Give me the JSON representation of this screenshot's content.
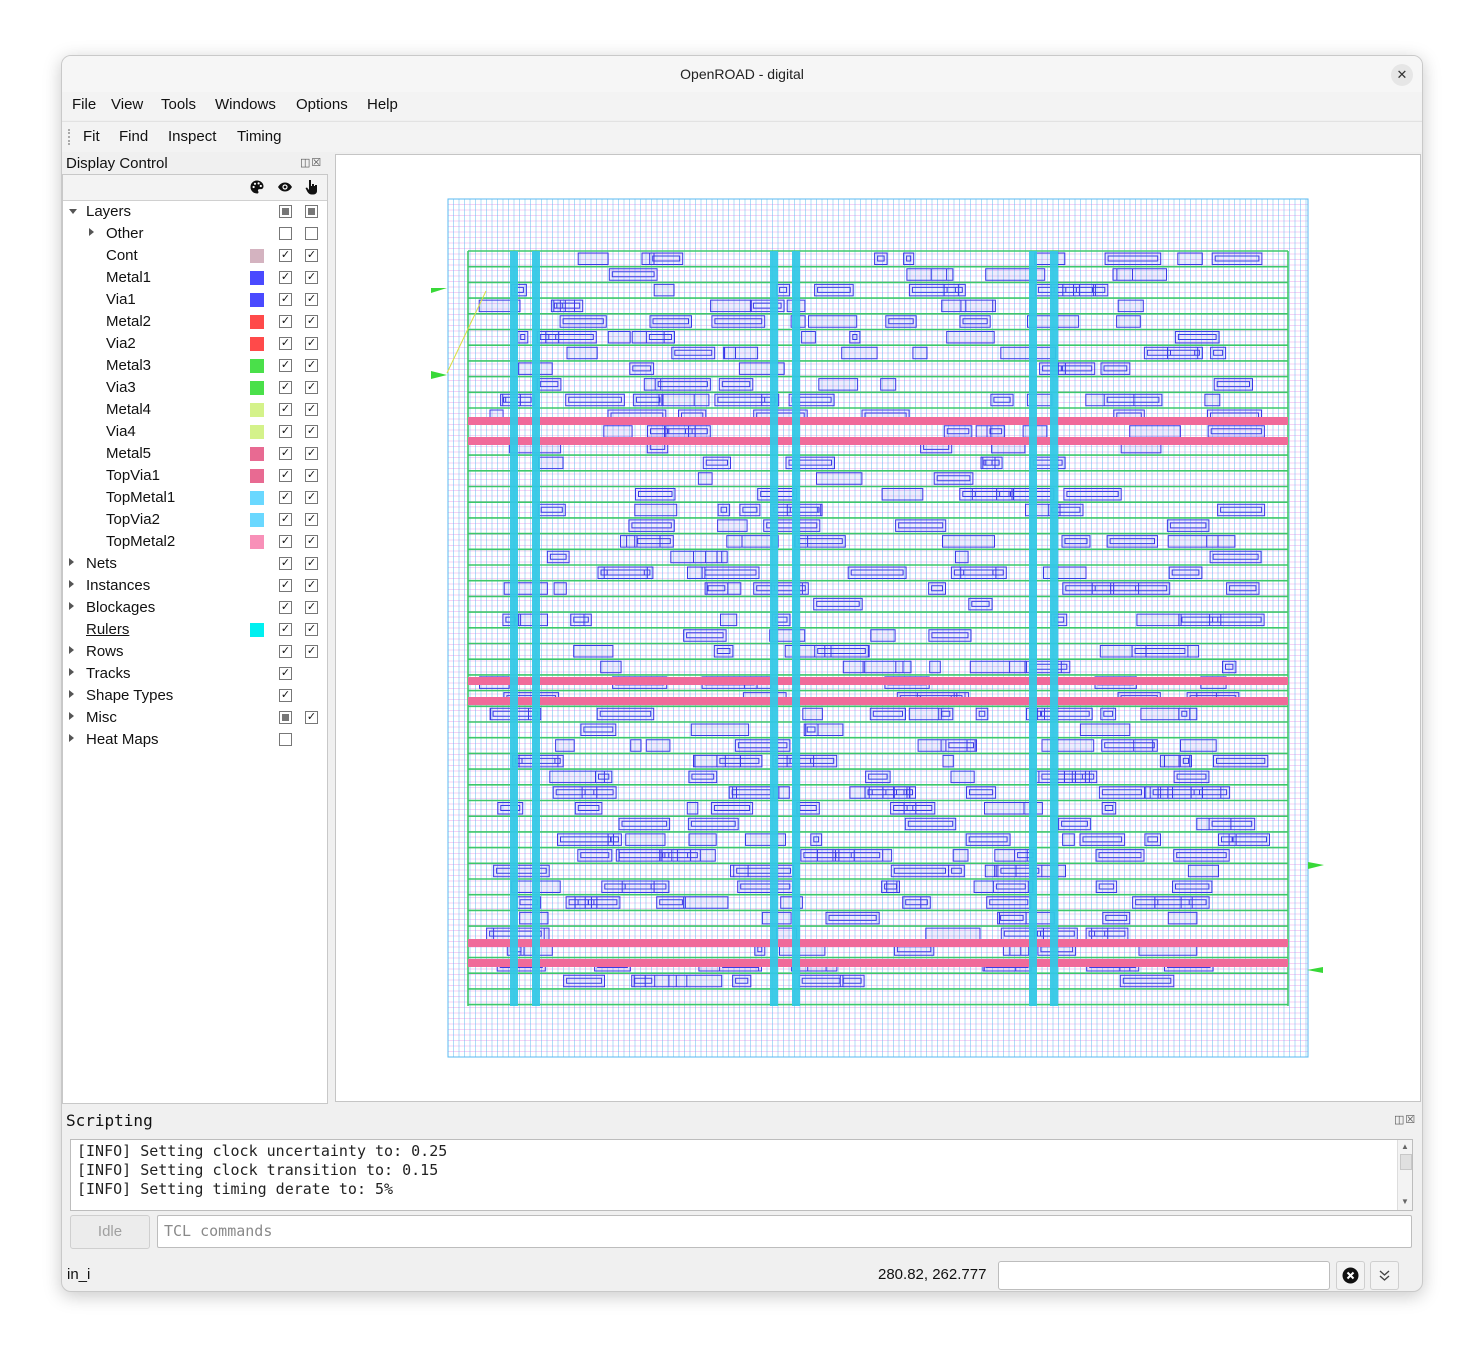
{
  "window": {
    "title": "OpenROAD - digital",
    "close_glyph": "✕"
  },
  "menubar": {
    "items": [
      "File",
      "View",
      "Tools",
      "Windows",
      "Options",
      "Help"
    ]
  },
  "toolbar": {
    "items": [
      "Fit",
      "Find",
      "Inspect",
      "Timing"
    ]
  },
  "display_control": {
    "title": "Display Control",
    "dock_buttons": "◫☒",
    "columns": {
      "color_icon": "palette-icon",
      "visible_icon": "eye-icon",
      "selectable_icon": "pointer-icon"
    },
    "rows": [
      {
        "label": "Layers",
        "indent": 0,
        "expander": "down",
        "color": null,
        "visible": "partial",
        "selectable": "partial"
      },
      {
        "label": "Other",
        "indent": 1,
        "expander": "right",
        "color": null,
        "visible": "unchecked",
        "selectable": "unchecked"
      },
      {
        "label": "Cont",
        "indent": 1,
        "expander": null,
        "color": "#d4b3c0",
        "visible": "checked",
        "selectable": "checked"
      },
      {
        "label": "Metal1",
        "indent": 1,
        "expander": null,
        "color": "#4a4aff",
        "visible": "checked",
        "selectable": "checked"
      },
      {
        "label": "Via1",
        "indent": 1,
        "expander": null,
        "color": "#4a4aff",
        "visible": "checked",
        "selectable": "checked"
      },
      {
        "label": "Metal2",
        "indent": 1,
        "expander": null,
        "color": "#ff4a4a",
        "visible": "checked",
        "selectable": "checked"
      },
      {
        "label": "Via2",
        "indent": 1,
        "expander": null,
        "color": "#ff4a4a",
        "visible": "checked",
        "selectable": "checked"
      },
      {
        "label": "Metal3",
        "indent": 1,
        "expander": null,
        "color": "#4ae04a",
        "visible": "checked",
        "selectable": "checked"
      },
      {
        "label": "Via3",
        "indent": 1,
        "expander": null,
        "color": "#4ae04a",
        "visible": "checked",
        "selectable": "checked"
      },
      {
        "label": "Metal4",
        "indent": 1,
        "expander": null,
        "color": "#d4f28a",
        "visible": "checked",
        "selectable": "checked"
      },
      {
        "label": "Via4",
        "indent": 1,
        "expander": null,
        "color": "#d4f28a",
        "visible": "checked",
        "selectable": "checked"
      },
      {
        "label": "Metal5",
        "indent": 1,
        "expander": null,
        "color": "#e86a92",
        "visible": "checked",
        "selectable": "checked"
      },
      {
        "label": "TopVia1",
        "indent": 1,
        "expander": null,
        "color": "#e86a92",
        "visible": "checked",
        "selectable": "checked"
      },
      {
        "label": "TopMetal1",
        "indent": 1,
        "expander": null,
        "color": "#6ad8ff",
        "visible": "checked",
        "selectable": "checked"
      },
      {
        "label": "TopVia2",
        "indent": 1,
        "expander": null,
        "color": "#6ad8ff",
        "visible": "checked",
        "selectable": "checked"
      },
      {
        "label": "TopMetal2",
        "indent": 1,
        "expander": null,
        "color": "#f890b8",
        "visible": "checked",
        "selectable": "checked"
      },
      {
        "label": "Nets",
        "indent": 0,
        "expander": "right",
        "color": null,
        "visible": "checked",
        "selectable": "checked"
      },
      {
        "label": "Instances",
        "indent": 0,
        "expander": "right",
        "color": null,
        "visible": "checked",
        "selectable": "checked"
      },
      {
        "label": "Blockages",
        "indent": 0,
        "expander": "right",
        "color": null,
        "visible": "checked",
        "selectable": "checked"
      },
      {
        "label": "Rulers",
        "indent": 0,
        "expander": null,
        "color": "#00f0f0",
        "visible": "checked",
        "selectable": "checked",
        "underline": true
      },
      {
        "label": "Rows",
        "indent": 0,
        "expander": "right",
        "color": null,
        "visible": "checked",
        "selectable": "checked"
      },
      {
        "label": "Tracks",
        "indent": 0,
        "expander": "right",
        "color": null,
        "visible": "checked",
        "selectable": "none"
      },
      {
        "label": "Shape Types",
        "indent": 0,
        "expander": "right",
        "color": null,
        "visible": "checked",
        "selectable": "none"
      },
      {
        "label": "Misc",
        "indent": 0,
        "expander": "right",
        "color": null,
        "visible": "partial",
        "selectable": "checked"
      },
      {
        "label": "Heat Maps",
        "indent": 0,
        "expander": "right",
        "color": null,
        "visible": "unchecked",
        "selectable": "none"
      }
    ]
  },
  "layout_view": {
    "colors": {
      "grid_h": "#e58ae6",
      "grid_v": "#58b8f0",
      "rails": "#3ec86a",
      "power_h": "#f06a9a",
      "power_v": "#33c8e6",
      "cells": "#3a3ae8",
      "pins": "#38d838"
    }
  },
  "scripting": {
    "title": "Scripting",
    "dock_buttons": "◫☒",
    "console_lines": [
      "[INFO] Setting clock uncertainty to: 0.25",
      "[INFO] Setting clock transition to: 0.15",
      "[INFO] Setting timing derate to: 5%"
    ],
    "idle_label": "Idle",
    "command_placeholder": "TCL commands"
  },
  "statusbar": {
    "selected": "in_i",
    "coordinates": "280.82, 262.777",
    "clear_glyph": "✖",
    "expand_glyph": "⌅"
  }
}
